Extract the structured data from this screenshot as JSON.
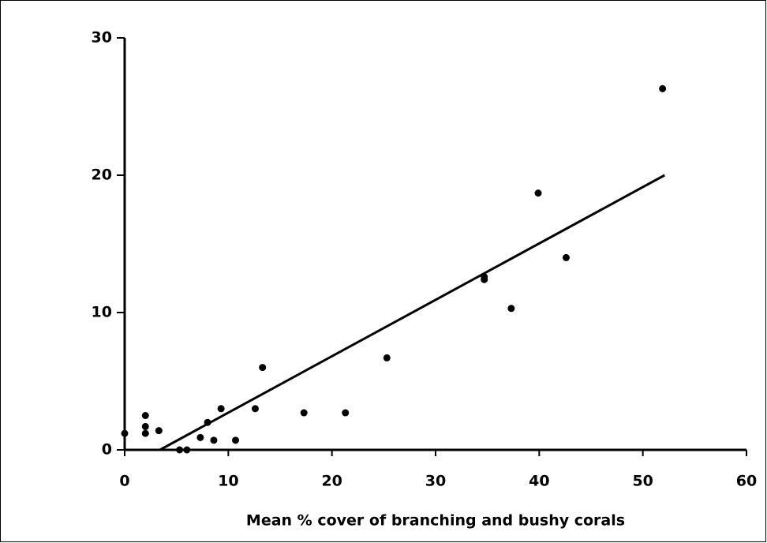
{
  "chart_data": {
    "type": "scatter",
    "x_label": "Mean % cover of branching and bushy corals",
    "x": [
      0,
      2,
      2,
      2,
      3.3,
      5.3,
      6,
      7.3,
      8,
      8.6,
      9.3,
      10.7,
      12.6,
      13.3,
      17.3,
      21.3,
      25.3,
      34.7,
      34.7,
      37.3,
      39.9,
      42.6,
      51.9
    ],
    "values": [
      1.2,
      2.5,
      1.7,
      1.2,
      1.4,
      0,
      0,
      0.9,
      2.0,
      0.7,
      3.0,
      0.7,
      3.0,
      6.0,
      2.7,
      2.7,
      6.7,
      12.4,
      12.6,
      10.3,
      18.7,
      14.0,
      26.3
    ],
    "color": "#000000",
    "trendline": {
      "x": [
        3.4,
        52.1
      ],
      "y": [
        0,
        20
      ]
    },
    "xlim": [
      0,
      60
    ],
    "xticks": [
      0,
      10,
      20,
      30,
      40,
      50,
      60
    ],
    "ylim": [
      0,
      30
    ],
    "yticks": [
      0,
      10,
      20,
      30
    ],
    "grid": false
  }
}
